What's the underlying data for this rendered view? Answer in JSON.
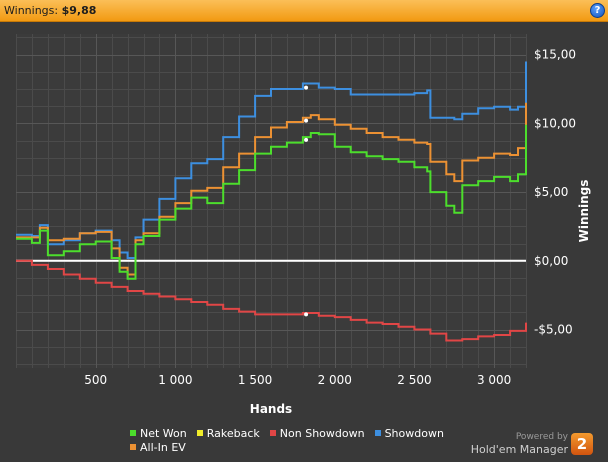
{
  "header": {
    "label": "Winnings:",
    "value": "$9,88",
    "help_icon": "?"
  },
  "chart_data": {
    "type": "line",
    "xlabel": "Hands",
    "ylabel": "Winnings",
    "xlim": [
      0,
      3200
    ],
    "ylim": [
      -7.8,
      16.5
    ],
    "x_ticks": [
      500,
      1000,
      1500,
      2000,
      2500,
      3000
    ],
    "x_tick_labels": [
      "500",
      "1 000",
      "1 500",
      "2 000",
      "2 500",
      "3 000"
    ],
    "y_ticks": [
      15,
      10,
      5,
      0,
      -5
    ],
    "y_tick_labels": [
      "$15,00",
      "$10,00",
      "$5,00",
      "$0,00",
      "-$5,00"
    ],
    "grid": true,
    "legend": "bottom",
    "series": [
      {
        "name": "Net Won",
        "color": "#4cde2c",
        "x": [
          0,
          100,
          150,
          200,
          300,
          400,
          500,
          600,
          650,
          700,
          750,
          800,
          900,
          1000,
          1100,
          1200,
          1300,
          1400,
          1500,
          1600,
          1700,
          1800,
          1850,
          1900,
          2000,
          2100,
          2200,
          2300,
          2400,
          2500,
          2580,
          2600,
          2700,
          2750,
          2800,
          2900,
          3000,
          3100,
          3150,
          3200
        ],
        "y": [
          1.6,
          1.3,
          2.2,
          0.4,
          0.7,
          1.2,
          1.4,
          0.2,
          -0.8,
          -1.3,
          1.2,
          1.8,
          3.0,
          3.8,
          4.6,
          4.2,
          5.6,
          6.6,
          7.8,
          8.3,
          8.6,
          9.0,
          9.3,
          9.2,
          8.3,
          7.9,
          7.6,
          7.4,
          7.2,
          6.8,
          6.5,
          5.0,
          4.0,
          3.5,
          5.5,
          5.8,
          6.1,
          5.8,
          6.3,
          9.9
        ]
      },
      {
        "name": "Rakeback",
        "color": "#f1ed2a",
        "x": [],
        "y": []
      },
      {
        "name": "Non Showdown",
        "color": "#e14646",
        "x": [
          0,
          100,
          200,
          300,
          400,
          500,
          600,
          700,
          800,
          900,
          1000,
          1100,
          1200,
          1300,
          1400,
          1500,
          1600,
          1700,
          1800,
          1900,
          2000,
          2100,
          2200,
          2300,
          2400,
          2500,
          2600,
          2700,
          2800,
          2900,
          3000,
          3100,
          3200
        ],
        "y": [
          0.0,
          -0.3,
          -0.6,
          -1.0,
          -1.3,
          -1.6,
          -1.9,
          -2.2,
          -2.4,
          -2.6,
          -2.8,
          -3.0,
          -3.2,
          -3.5,
          -3.7,
          -3.9,
          -3.9,
          -3.9,
          -3.8,
          -4.0,
          -4.1,
          -4.3,
          -4.5,
          -4.6,
          -4.8,
          -5.0,
          -5.3,
          -5.8,
          -5.7,
          -5.5,
          -5.4,
          -5.1,
          -4.5
        ]
      },
      {
        "name": "Showdown",
        "color": "#3d8fe0",
        "x": [
          0,
          100,
          150,
          200,
          300,
          400,
          500,
          600,
          650,
          700,
          750,
          800,
          900,
          1000,
          1100,
          1200,
          1300,
          1400,
          1500,
          1600,
          1700,
          1800,
          1900,
          2000,
          2100,
          2200,
          2300,
          2400,
          2500,
          2580,
          2600,
          2700,
          2750,
          2800,
          2900,
          3000,
          3100,
          3150,
          3200
        ],
        "y": [
          1.9,
          1.8,
          2.6,
          1.2,
          1.5,
          2.0,
          2.2,
          1.5,
          0.6,
          0.2,
          1.7,
          3.0,
          4.5,
          6.0,
          7.1,
          7.4,
          9.0,
          10.5,
          12.0,
          12.5,
          12.5,
          12.9,
          12.6,
          12.5,
          12.1,
          12.1,
          12.1,
          12.1,
          12.2,
          12.4,
          10.4,
          10.4,
          10.3,
          10.7,
          11.1,
          11.2,
          11.0,
          11.2,
          14.5
        ]
      },
      {
        "name": "All-In EV",
        "color": "#ec9133",
        "x": [
          0,
          100,
          150,
          200,
          300,
          400,
          500,
          600,
          650,
          700,
          750,
          800,
          900,
          1000,
          1100,
          1200,
          1300,
          1400,
          1500,
          1600,
          1700,
          1800,
          1850,
          1900,
          2000,
          2100,
          2200,
          2300,
          2400,
          2500,
          2580,
          2600,
          2700,
          2750,
          2800,
          2900,
          3000,
          3100,
          3150,
          3200
        ],
        "y": [
          1.7,
          1.7,
          2.4,
          1.5,
          1.6,
          2.0,
          2.1,
          0.9,
          -0.5,
          -1.0,
          1.5,
          2.0,
          3.2,
          4.2,
          5.1,
          5.3,
          6.8,
          7.8,
          9.0,
          9.7,
          10.1,
          10.4,
          10.6,
          10.3,
          9.9,
          9.6,
          9.3,
          9.0,
          8.8,
          8.6,
          8.5,
          7.2,
          6.3,
          5.8,
          7.3,
          7.5,
          7.8,
          7.7,
          8.2,
          11.5
        ]
      }
    ],
    "markers": [
      {
        "series": "Showdown",
        "x": 1820,
        "y": 12.6
      },
      {
        "series": "All-In EV",
        "x": 1820,
        "y": 10.2
      },
      {
        "series": "Net Won",
        "x": 1820,
        "y": 8.8
      },
      {
        "series": "Non Showdown",
        "x": 1820,
        "y": -3.9
      }
    ]
  },
  "legend": {
    "rows": [
      [
        {
          "label": "Net Won",
          "color": "#4cde2c"
        },
        {
          "label": "Rakeback",
          "color": "#f1ed2a"
        },
        {
          "label": "Non Showdown",
          "color": "#e14646"
        },
        {
          "label": "Showdown",
          "color": "#3d8fe0"
        }
      ],
      [
        {
          "label": "All-In EV",
          "color": "#ec9133"
        }
      ]
    ]
  },
  "footer": {
    "powered_by": "Powered by",
    "brand": "Hold'em Manager",
    "logo_text": "2"
  }
}
